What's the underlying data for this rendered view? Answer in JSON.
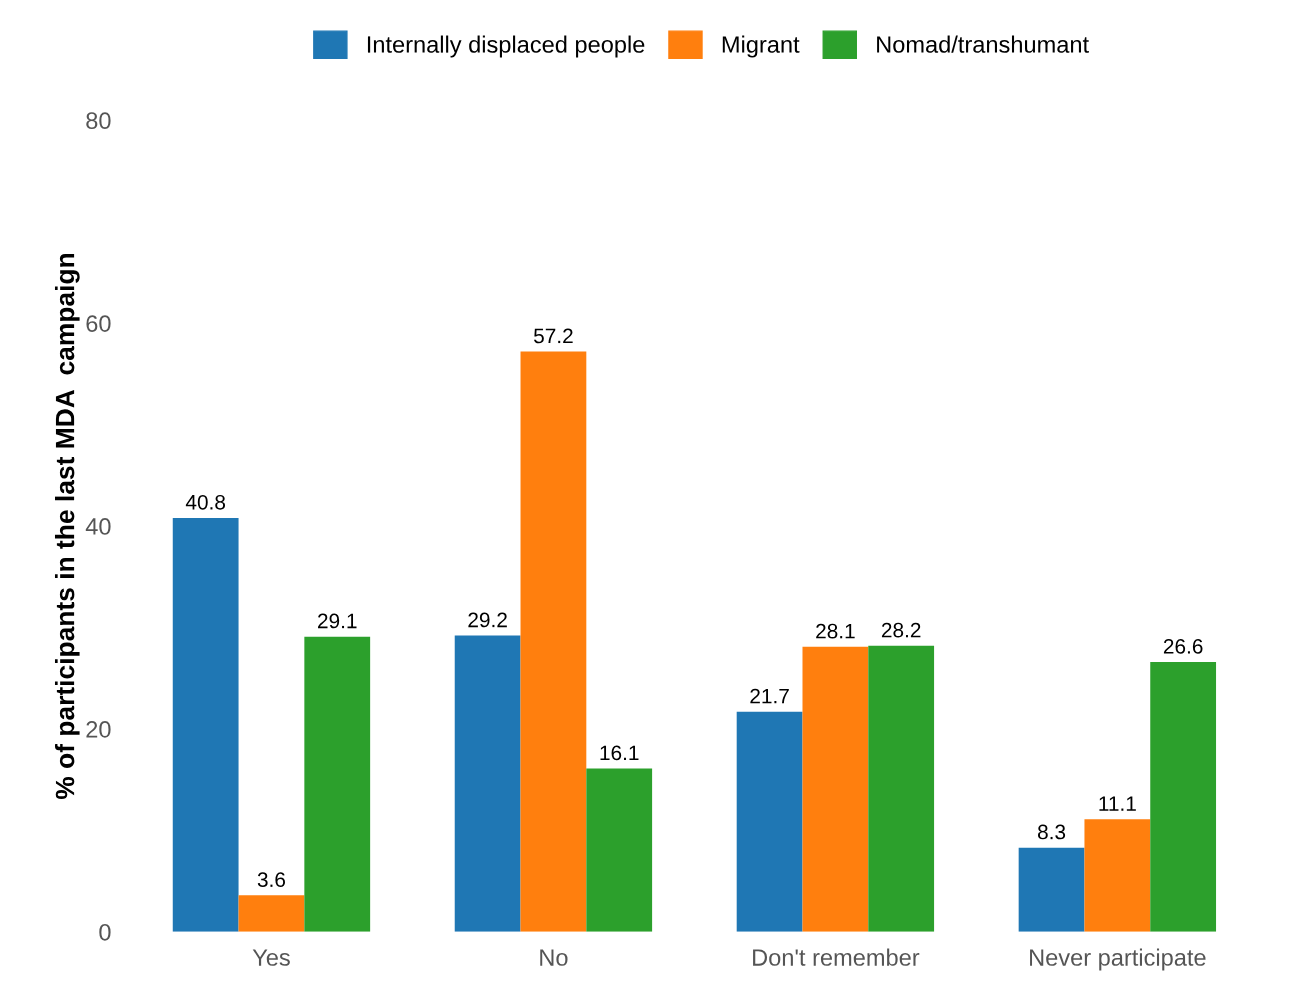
{
  "chart_data": {
    "type": "bar",
    "ylabel": "% of participants in the last MDA  campaign",
    "categories": [
      "Yes",
      "No",
      "Don't remember",
      "Never participate"
    ],
    "series": [
      {
        "name": "Internally displaced people",
        "color": "#1f77b4",
        "values": [
          40.8,
          29.2,
          21.7,
          8.3
        ]
      },
      {
        "name": "Migrant",
        "color": "#ff7f0e",
        "values": [
          3.6,
          57.2,
          28.1,
          11.1
        ]
      },
      {
        "name": "Nomad/transhumant",
        "color": "#2ca02c",
        "values": [
          29.1,
          16.1,
          28.2,
          26.6
        ]
      }
    ],
    "ylim": [
      0,
      80
    ],
    "yticks": [
      0,
      20,
      40,
      60,
      80
    ],
    "grid": false,
    "legend": "top",
    "data_labels": true
  }
}
